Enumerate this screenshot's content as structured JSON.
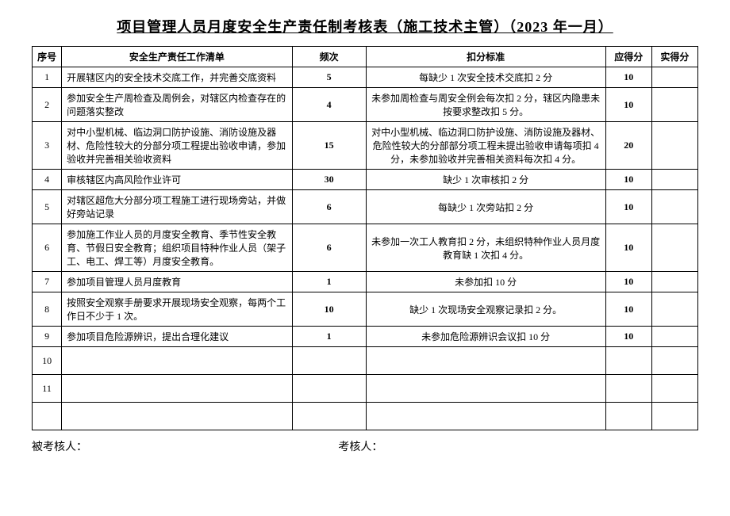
{
  "title": "项目管理人员月度安全生产责任制考核表（施工技术主管）（2023 年一月）",
  "headers": {
    "seq": "序号",
    "task": "安全生产责任工作清单",
    "freq": "频次",
    "criteria": "扣分标准",
    "should": "应得分",
    "actual": "实得分"
  },
  "rows": [
    {
      "seq": "1",
      "task": "开展辖区内的安全技术交底工作，并完善交底资料",
      "freq": "5",
      "criteria": "每缺少 1 次安全技术交底扣 2 分",
      "should": "10",
      "actual": ""
    },
    {
      "seq": "2",
      "task": "参加安全生产周检查及周例会，对辖区内检查存在的问题落实整改",
      "freq": "4",
      "criteria": "未参加周检查与周安全例会每次扣 2 分，辖区内隐患未按要求整改扣 5 分。",
      "should": "10",
      "actual": ""
    },
    {
      "seq": "3",
      "task": "对中小型机械、临边洞口防护设施、消防设施及器材、危险性较大的分部分项工程提出验收申请，参加验收并完善相关验收资料",
      "freq": "15",
      "criteria": "对中小型机械、临边洞口防护设施、消防设施及器材、危险性较大的分部部分项工程未提出验收申请每项扣 4 分，未参加验收并完善相关资料每次扣 4 分。",
      "should": "20",
      "actual": ""
    },
    {
      "seq": "4",
      "task": "审核辖区内高风险作业许可",
      "freq": "30",
      "criteria": "缺少 1 次审核扣 2 分",
      "should": "10",
      "actual": ""
    },
    {
      "seq": "5",
      "task": "对辖区超危大分部分项工程施工进行现场旁站，并做好旁站记录",
      "freq": "6",
      "criteria": "每缺少 1 次旁站扣 2 分",
      "should": "10",
      "actual": ""
    },
    {
      "seq": "6",
      "task": "参加施工作业人员的月度安全教育、季节性安全教育、节假日安全教育；组织项目特种作业人员（架子工、电工、焊工等）月度安全教育。",
      "freq": "6",
      "criteria": "未参加一次工人教育扣 2 分，未组织特种作业人员月度教育缺 1 次扣 4 分。",
      "should": "10",
      "actual": ""
    },
    {
      "seq": "7",
      "task": "参加项目管理人员月度教育",
      "freq": "1",
      "criteria": "未参加扣 10 分",
      "should": "10",
      "actual": ""
    },
    {
      "seq": "8",
      "task": "按照安全观察手册要求开展现场安全观察，每两个工作日不少于 1 次。",
      "freq": "10",
      "criteria": "缺少 1 次现场安全观察记录扣 2 分。",
      "should": "10",
      "actual": ""
    },
    {
      "seq": "9",
      "task": "参加项目危险源辨识，提出合理化建议",
      "freq": "1",
      "criteria": "未参加危险源辨识会议扣 10 分",
      "should": "10",
      "actual": ""
    },
    {
      "seq": "10",
      "task": "",
      "freq": "",
      "criteria": "",
      "should": "",
      "actual": ""
    },
    {
      "seq": "11",
      "task": "",
      "freq": "",
      "criteria": "",
      "should": "",
      "actual": ""
    },
    {
      "seq": "",
      "task": "",
      "freq": "",
      "criteria": "",
      "should": "",
      "actual": ""
    }
  ],
  "footer": {
    "assessee": "被考核人：",
    "assessor": "考核人："
  }
}
